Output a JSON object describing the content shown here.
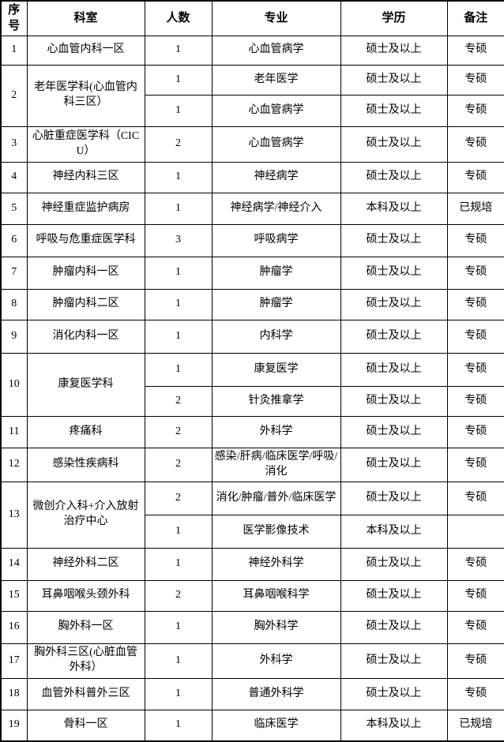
{
  "page": {
    "background_color": "#ffffff",
    "grid_color": "#000000",
    "text_color": "#000000"
  },
  "table": {
    "headers": [
      "序号",
      "科室",
      "人数",
      "专业",
      "学历",
      "备注"
    ],
    "rows": [
      {
        "no": "1",
        "dept": "心血管内科一区",
        "subrows": [
          {
            "count": "1",
            "major": "心血管病学",
            "degree": "硕士及以上",
            "note": "专硕"
          }
        ]
      },
      {
        "no": "2",
        "dept": "老年医学科(心血管内科三区）",
        "subrows": [
          {
            "count": "1",
            "major": "老年医学",
            "degree": "硕士及以上",
            "note": "专硕"
          },
          {
            "count": "1",
            "major": "心血管病学",
            "degree": "硕士及以上",
            "note": "专硕"
          }
        ]
      },
      {
        "no": "3",
        "dept": "心脏重症医学科（CICU）",
        "subrows": [
          {
            "count": "2",
            "major": "心血管病学",
            "degree": "硕士及以上",
            "note": "专硕"
          }
        ]
      },
      {
        "no": "4",
        "dept": "神经内科三区",
        "subrows": [
          {
            "count": "1",
            "major": "神经病学",
            "degree": "硕士及以上",
            "note": "专硕"
          }
        ]
      },
      {
        "no": "5",
        "dept": "神经重症监护病房",
        "subrows": [
          {
            "count": "1",
            "major": "神经病学/神经介入",
            "degree": "本科及以上",
            "note": "已规培"
          }
        ]
      },
      {
        "no": "6",
        "dept": "呼吸与危重症医学科",
        "subrows": [
          {
            "count": "3",
            "major": "呼吸病学",
            "degree": "硕士及以上",
            "note": "专硕"
          }
        ]
      },
      {
        "no": "7",
        "dept": "肿瘤内科一区",
        "subrows": [
          {
            "count": "1",
            "major": "肿瘤学",
            "degree": "硕士及以上",
            "note": "专硕"
          }
        ]
      },
      {
        "no": "8",
        "dept": "肿瘤内科二区",
        "subrows": [
          {
            "count": "1",
            "major": "肿瘤学",
            "degree": "硕士及以上",
            "note": "专硕"
          }
        ]
      },
      {
        "no": "9",
        "dept": "消化内科一区",
        "subrows": [
          {
            "count": "1",
            "major": "内科学",
            "degree": "硕士及以上",
            "note": "专硕"
          }
        ]
      },
      {
        "no": "10",
        "dept": "康复医学科",
        "subrows": [
          {
            "count": "1",
            "major": "康复医学",
            "degree": "硕士及以上",
            "note": "专硕"
          },
          {
            "count": "2",
            "major": "针灸推拿学",
            "degree": "硕士及以上",
            "note": "专硕"
          }
        ]
      },
      {
        "no": "11",
        "dept": "疼痛科",
        "subrows": [
          {
            "count": "2",
            "major": "外科学",
            "degree": "硕士及以上",
            "note": "专硕"
          }
        ]
      },
      {
        "no": "12",
        "dept": "感染性疾病科",
        "subrows": [
          {
            "count": "2",
            "major": "感染/肝病/临床医学/呼吸/消化",
            "degree": "硕士及以上",
            "note": "专硕"
          }
        ]
      },
      {
        "no": "13",
        "dept": "微创介入科+介入放射治疗中心",
        "subrows": [
          {
            "count": "2",
            "major": "消化/肿瘤/普外/临床医学",
            "degree": "硕士及以上",
            "note": "专硕"
          },
          {
            "count": "1",
            "major": "医学影像技术",
            "degree": "本科及以上",
            "note": ""
          }
        ]
      },
      {
        "no": "14",
        "dept": "神经外科二区",
        "subrows": [
          {
            "count": "1",
            "major": "神经外科学",
            "degree": "硕士及以上",
            "note": "专硕"
          }
        ]
      },
      {
        "no": "15",
        "dept": "耳鼻咽喉头颈外科",
        "subrows": [
          {
            "count": "2",
            "major": "耳鼻咽喉科学",
            "degree": "硕士及以上",
            "note": "专硕"
          }
        ]
      },
      {
        "no": "16",
        "dept": "胸外科一区",
        "subrows": [
          {
            "count": "1",
            "major": "胸外科学",
            "degree": "硕士及以上",
            "note": "专硕"
          }
        ]
      },
      {
        "no": "17",
        "dept": "胸外科三区(心脏血管外科）",
        "subrows": [
          {
            "count": "1",
            "major": "外科学",
            "degree": "硕士及以上",
            "note": "专硕"
          }
        ]
      },
      {
        "no": "18",
        "dept": "血管外科普外三区",
        "subrows": [
          {
            "count": "1",
            "major": "普通外科学",
            "degree": "硕士及以上",
            "note": "专硕"
          }
        ]
      },
      {
        "no": "19",
        "dept": "骨科一区",
        "subrows": [
          {
            "count": "1",
            "major": "临床医学",
            "degree": "本科及以上",
            "note": "已规培"
          }
        ]
      }
    ]
  }
}
